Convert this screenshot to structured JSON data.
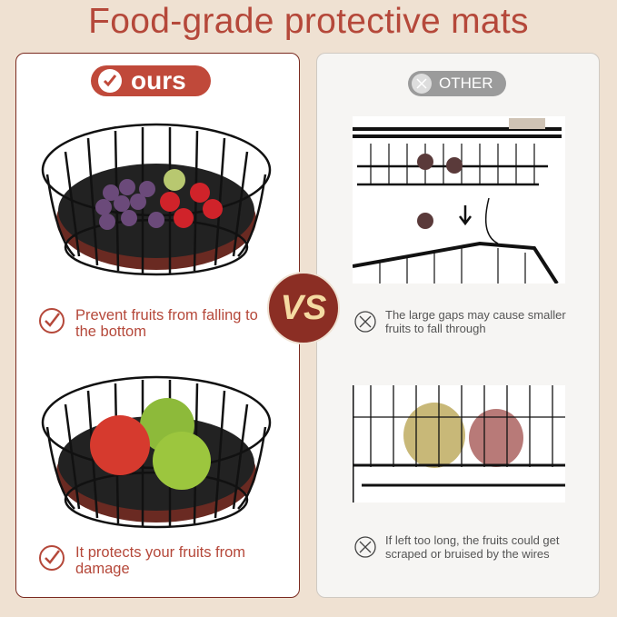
{
  "title": "Food-grade protective mats",
  "left": {
    "badge": "ours",
    "badge_icon": "check-circle-icon",
    "captions": [
      "Prevent fruits from falling to the bottom",
      "It protects your fruits from damage"
    ]
  },
  "right": {
    "badge": "OTHER",
    "badge_icon": "x-circle-icon",
    "captions": [
      "The large gaps may cause smaller fruits to fall through",
      "If left too long, the fruits could get scraped or bruised by the wires"
    ]
  },
  "vs": "VS",
  "colors": {
    "accent": "#b5483a",
    "vs": "#8b2e24",
    "background": "#efe1d2",
    "other": "#9b9b9b"
  }
}
